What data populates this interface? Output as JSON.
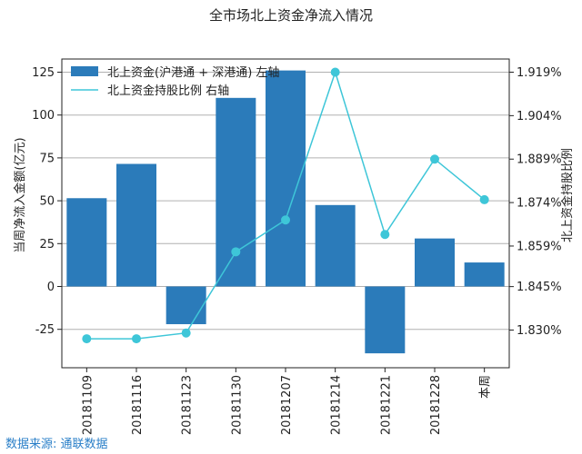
{
  "chart_data": {
    "type": "bar+line",
    "title": "全市场北上资金净流入情况",
    "categories": [
      "20181109",
      "20181116",
      "20181123",
      "20181130",
      "20181207",
      "20181214",
      "20181221",
      "20181228",
      "本周"
    ],
    "series": [
      {
        "name": "北上资金(沪港通 + 深港通) 左轴",
        "type": "bar",
        "axis": "left",
        "color": "#2b7bba",
        "values": [
          51.5,
          71.5,
          -22,
          110,
          126,
          47.5,
          -39,
          28,
          14
        ]
      },
      {
        "name": "北上资金持股比例 右轴",
        "type": "line",
        "axis": "right",
        "color": "#3ec6d8",
        "values": [
          1.827,
          1.827,
          1.829,
          1.857,
          1.868,
          1.919,
          1.863,
          1.889,
          1.875
        ]
      }
    ],
    "ylabel_left": "当周净流入金额(亿元)",
    "ylabel_right": "北上资金持股比例",
    "ylim_left": [
      -47,
      133
    ],
    "yticks_left": [
      "125",
      "100",
      "75",
      "50",
      "25",
      "0",
      "-25"
    ],
    "yticks_left_values": [
      125,
      100,
      75,
      50,
      25,
      0,
      -25
    ],
    "yticks_right": [
      "1.919%",
      "1.904%",
      "1.889%",
      "1.874%",
      "1.859%",
      "1.845%",
      "1.830%"
    ],
    "yticks_right_values": [
      1.919,
      1.904,
      1.889,
      1.874,
      1.859,
      1.845,
      1.83
    ],
    "grid": true,
    "legend_position": "top-left"
  },
  "source": "数据来源: 通联数据"
}
